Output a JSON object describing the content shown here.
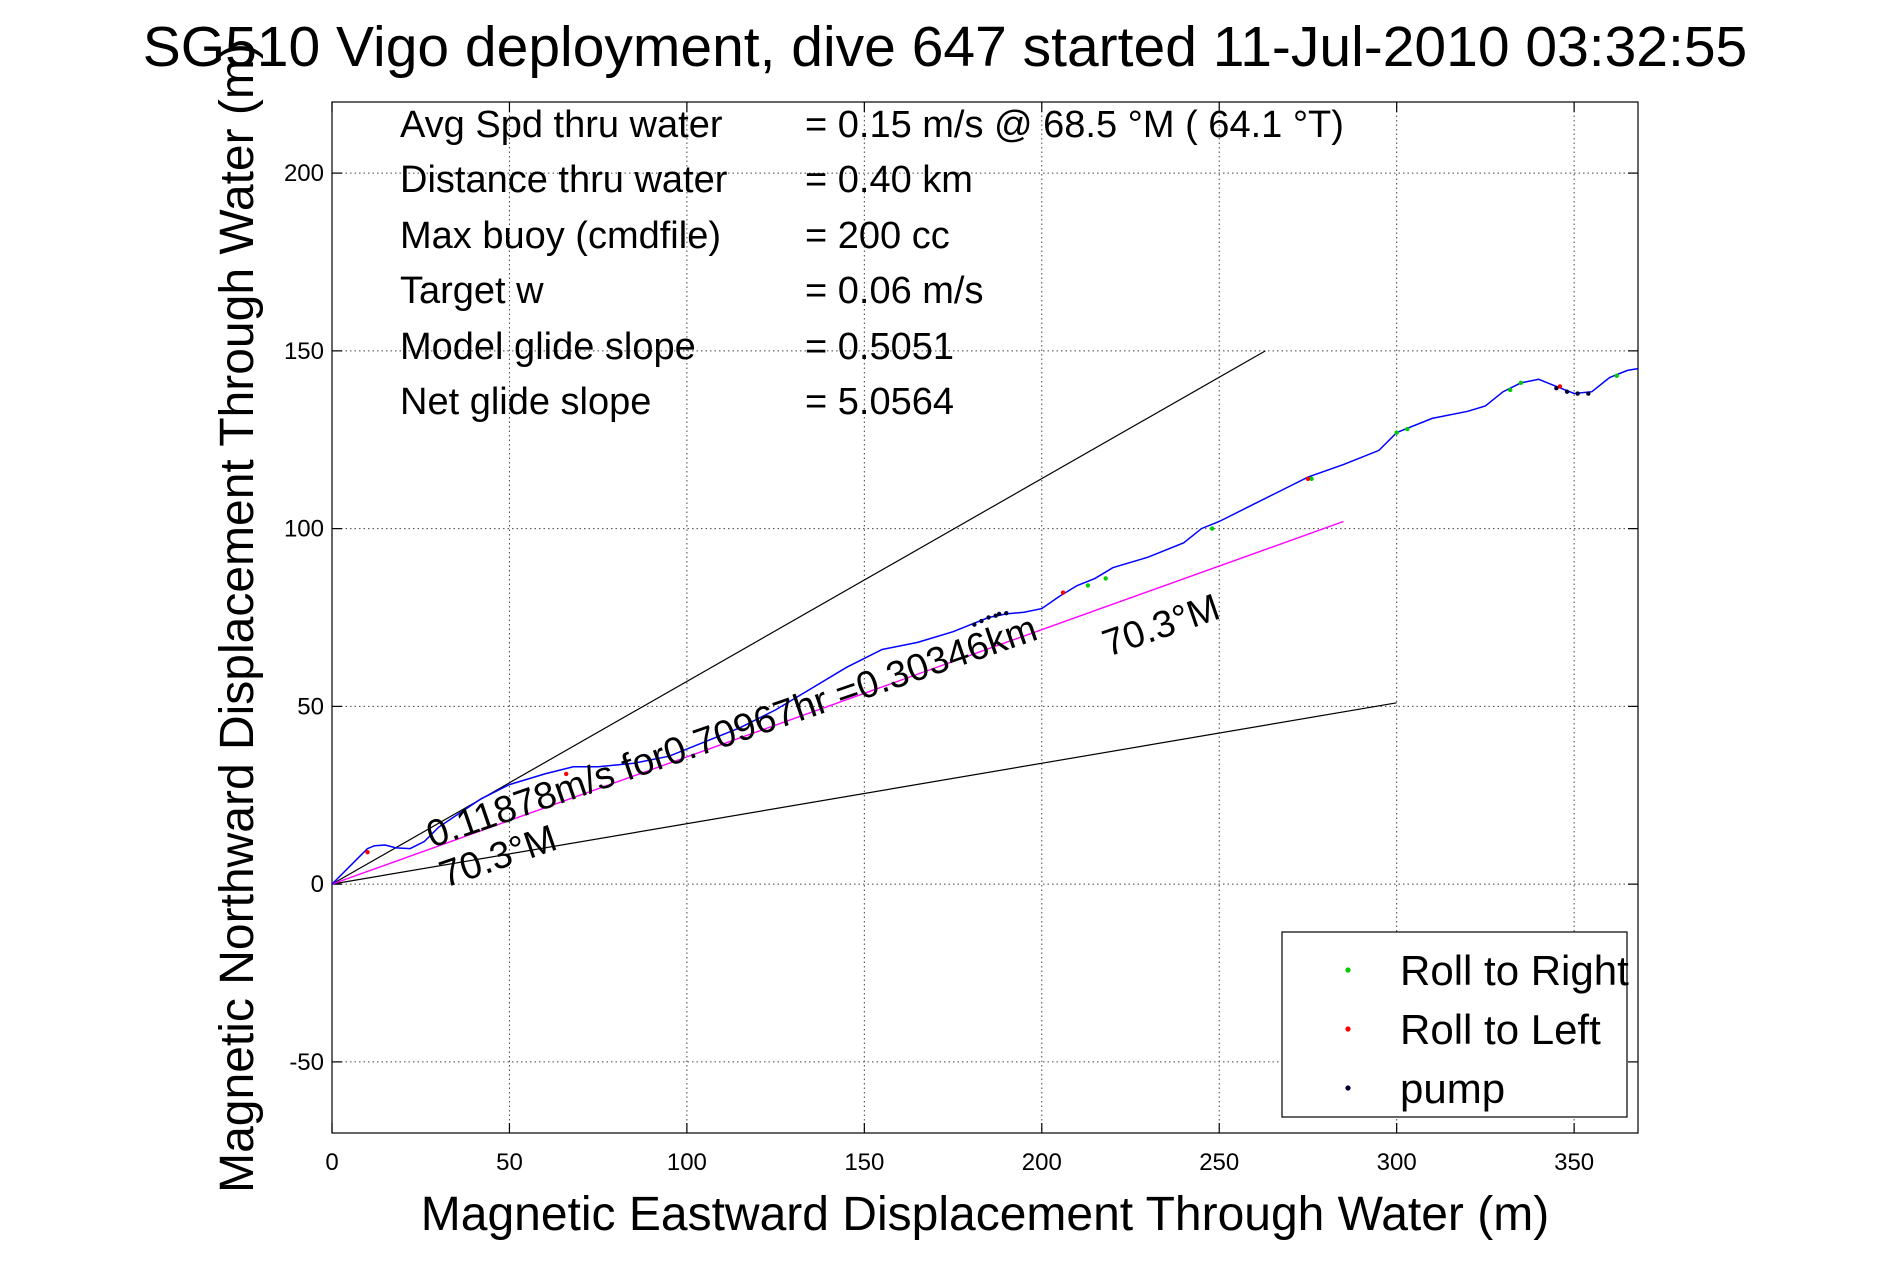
{
  "chart_data": {
    "type": "line",
    "title": "SG510 Vigo deployment, dive 647 started 11-Jul-2010 03:32:55",
    "xlabel": "Magnetic Eastward Displacement Through Water (m)",
    "ylabel": "Magnetic Northward Displacement Through Water (m)",
    "xlim": [
      0,
      368
    ],
    "ylim": [
      -70,
      220
    ],
    "xticks": [
      0,
      50,
      100,
      150,
      200,
      250,
      300,
      350
    ],
    "yticks": [
      -50,
      0,
      50,
      100,
      150,
      200
    ],
    "grid": true,
    "legend_position": "bottom-right",
    "stats": [
      {
        "label": "Avg Spd thru water",
        "value": "=  0.15 m/s @  68.5 °M ( 64.1 °T)"
      },
      {
        "label": "Distance thru water",
        "value": "=  0.40 km"
      },
      {
        "label": "Max buoy (cmdfile)",
        "value": "= 200 cc"
      },
      {
        "label": "Target w",
        "value": "= 0.06 m/s"
      },
      {
        "label": "Model glide slope",
        "value": "= 0.5051"
      },
      {
        "label": "Net glide slope",
        "value": "= 5.0564"
      }
    ],
    "annotations": {
      "speed_text": "0.11878m/s for0.70967hr =0.30346km",
      "heading_left": "70.3°M",
      "heading_right": "70.3°M"
    },
    "legend": [
      {
        "label": "Roll to Right",
        "color": "#00cc00"
      },
      {
        "label": "Roll to Left",
        "color": "#ff0000"
      },
      {
        "label": "pump",
        "color": "#000033"
      }
    ],
    "track": {
      "color": "#0000ff",
      "x": [
        0,
        3,
        6,
        8,
        10,
        12,
        15,
        18,
        22,
        26,
        30,
        36,
        42,
        50,
        60,
        68,
        75,
        85,
        95,
        105,
        115,
        125,
        135,
        145,
        155,
        165,
        175,
        180,
        185,
        190,
        195,
        200,
        205,
        210,
        215,
        220,
        230,
        240,
        245,
        250,
        260,
        270,
        275,
        285,
        295,
        300,
        310,
        320,
        325,
        330,
        335,
        340,
        345,
        350,
        355,
        360,
        365,
        368
      ],
      "y": [
        0,
        3,
        6,
        8,
        10,
        10.8,
        11,
        10.2,
        10,
        12,
        16,
        20,
        24,
        28,
        31,
        33,
        33,
        34,
        36,
        40,
        44,
        49,
        55,
        61,
        66,
        68,
        71,
        73,
        75,
        76,
        76.5,
        77.5,
        81,
        84,
        86,
        89,
        92,
        96,
        100,
        102,
        107,
        112,
        114.5,
        118,
        122,
        127,
        131,
        133,
        134.5,
        138.5,
        141,
        142,
        140,
        138,
        138.5,
        142.5,
        144.5,
        145
      ]
    },
    "reference_line": {
      "color": "#ff00ff",
      "from": [
        0,
        0
      ],
      "to": [
        285,
        102
      ]
    },
    "envelope_lines": [
      {
        "color": "#000000",
        "from": [
          0,
          0
        ],
        "to": [
          263,
          150
        ]
      },
      {
        "color": "#000000",
        "from": [
          0,
          0
        ],
        "to": [
          300,
          51
        ]
      }
    ],
    "markers": {
      "roll_right": {
        "color": "#00cc00",
        "x": [
          213,
          218,
          248,
          276,
          300,
          303,
          332,
          335,
          362
        ],
        "y": [
          84,
          86,
          100,
          114,
          127,
          128,
          139,
          141,
          143
        ]
      },
      "roll_left": {
        "color": "#ff0000",
        "x": [
          10,
          66,
          206,
          275,
          346
        ],
        "y": [
          9,
          31,
          82,
          114,
          140
        ]
      },
      "pump": {
        "color": "#000033",
        "x": [
          181,
          183,
          185,
          187,
          188,
          190,
          345,
          348,
          351,
          354
        ],
        "y": [
          73,
          74,
          75,
          75.5,
          76,
          76.2,
          139.5,
          138.5,
          138,
          138
        ]
      }
    }
  }
}
